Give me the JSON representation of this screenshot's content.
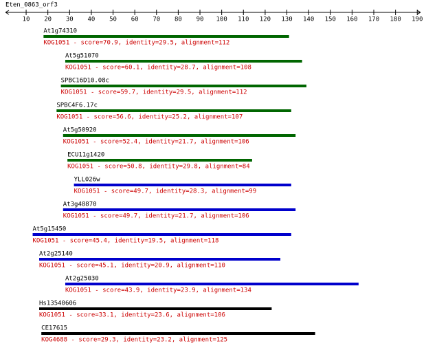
{
  "chart_data": {
    "type": "alignment",
    "title": "Eten_0863_orf3",
    "xlim": [
      0.5,
      191.5
    ],
    "xticks": [
      10,
      20,
      30,
      40,
      50,
      60,
      70,
      80,
      90,
      100,
      110,
      120,
      130,
      140,
      150,
      160,
      170,
      180,
      190
    ],
    "rows": [
      {
        "name": "At1g74310",
        "description": "KOG1051 - score=70.9, identity=29.5, alignment=112",
        "color": "#006600",
        "start": 18,
        "end": 131
      },
      {
        "name": "At5g51070",
        "description": "KOG1051 - score=60.1, identity=28.7, alignment=108",
        "color": "#006600",
        "start": 28,
        "end": 137
      },
      {
        "name": "SPBC16D10.08c",
        "description": "KOG1051 - score=59.7, identity=29.5, alignment=112",
        "color": "#006600",
        "start": 26,
        "end": 139
      },
      {
        "name": "SPBC4F6.17c",
        "description": "KOG1051 - score=56.6, identity=25.2, alignment=107",
        "color": "#006600",
        "start": 24,
        "end": 132
      },
      {
        "name": "At5g50920",
        "description": "KOG1051 - score=52.4, identity=21.7, alignment=106",
        "color": "#006600",
        "start": 27,
        "end": 134
      },
      {
        "name": "ECU11g1420",
        "description": "KOG1051 - score=50.8, identity=29.8, alignment=84",
        "color": "#006600",
        "start": 29,
        "end": 114
      },
      {
        "name": "YLL026w",
        "description": "KOG1051 - score=49.7, identity=28.3, alignment=99",
        "color": "#0000cc",
        "start": 32,
        "end": 132
      },
      {
        "name": "At3g48870",
        "description": "KOG1051 - score=49.7, identity=21.7, alignment=106",
        "color": "#0000cc",
        "start": 27,
        "end": 134
      },
      {
        "name": "At5g15450",
        "description": "KOG1051 - score=45.4, identity=19.5, alignment=118",
        "color": "#0000cc",
        "start": 13,
        "end": 132
      },
      {
        "name": "At2g25140",
        "description": "KOG1051 - score=45.1, identity=20.9, alignment=110",
        "color": "#0000cc",
        "start": 16,
        "end": 127
      },
      {
        "name": "At2g25030",
        "description": "KOG1051 - score=43.9, identity=23.9, alignment=134",
        "color": "#0000cc",
        "start": 28,
        "end": 163
      },
      {
        "name": "Hs13540606",
        "description": "KOG1051 - score=33.1, identity=23.6, alignment=106",
        "color": "#000000",
        "start": 16,
        "end": 123
      },
      {
        "name": "CE17615",
        "description": "KOG4688 - score=29.3, identity=23.2, alignment=125",
        "color": "#000000",
        "start": 17,
        "end": 143
      }
    ]
  }
}
